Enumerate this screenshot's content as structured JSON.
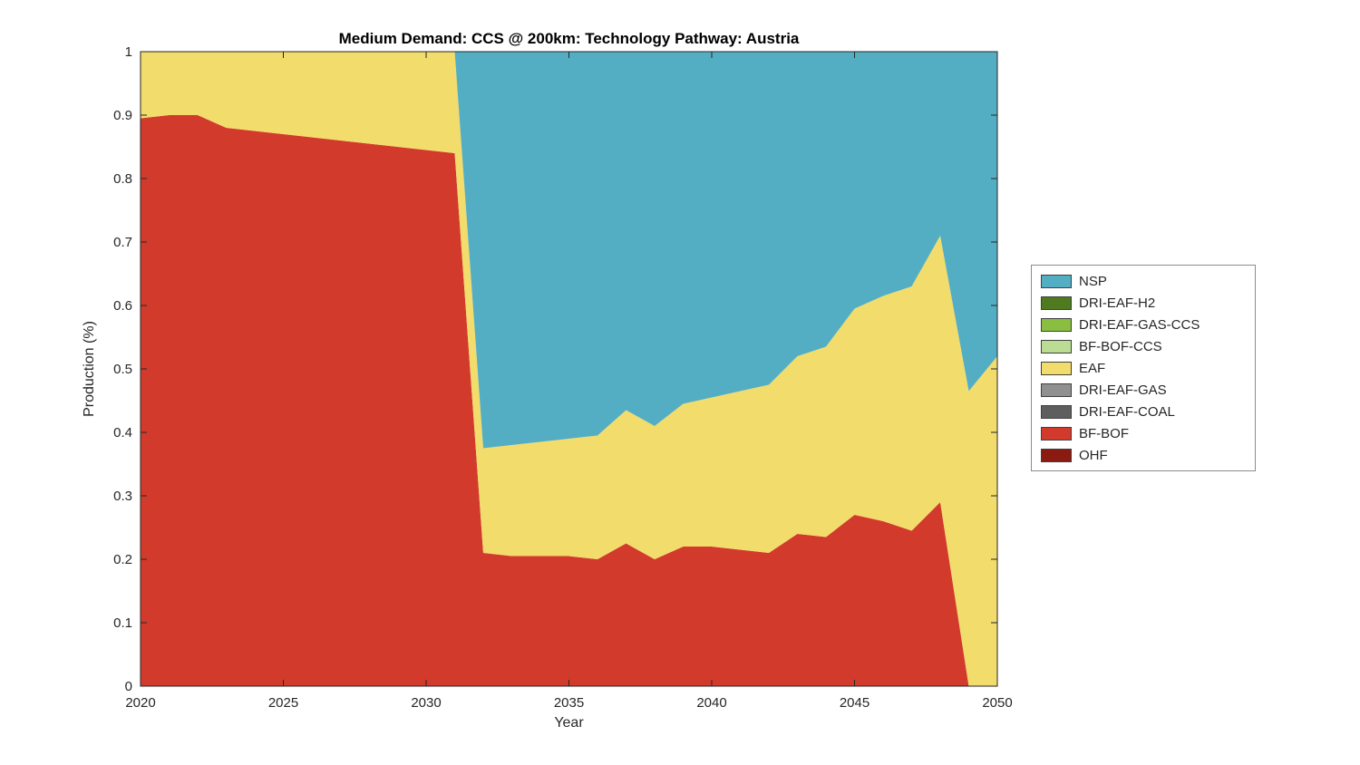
{
  "chart_data": {
    "type": "area",
    "stacked": true,
    "title": "Medium Demand: CCS @ 200km: Technology Pathway: Austria",
    "xlabel": "Year",
    "ylabel": "Production (%)",
    "xlim": [
      2020,
      2050
    ],
    "ylim": [
      0,
      1
    ],
    "grid": false,
    "legend_position": "right-outside",
    "x": [
      2020,
      2021,
      2022,
      2023,
      2024,
      2025,
      2026,
      2027,
      2028,
      2029,
      2030,
      2031,
      2032,
      2033,
      2034,
      2035,
      2036,
      2037,
      2038,
      2039,
      2040,
      2041,
      2042,
      2043,
      2044,
      2045,
      2046,
      2047,
      2048,
      2049,
      2050
    ],
    "xticks": [
      2020,
      2025,
      2030,
      2035,
      2040,
      2045,
      2050
    ],
    "xtick_labels": [
      "2020",
      "2025",
      "2030",
      "2035",
      "2040",
      "2045",
      "2050"
    ],
    "yticks": [
      0,
      0.1,
      0.2,
      0.3,
      0.4,
      0.5,
      0.6,
      0.7,
      0.8,
      0.9,
      1
    ],
    "ytick_labels": [
      "0",
      "0.1",
      "0.2",
      "0.3",
      "0.4",
      "0.5",
      "0.6",
      "0.7",
      "0.8",
      "0.9",
      "1"
    ],
    "series": [
      {
        "name": "OHF",
        "color": "#8b1a10",
        "values": [
          0,
          0,
          0,
          0,
          0,
          0,
          0,
          0,
          0,
          0,
          0,
          0,
          0,
          0,
          0,
          0,
          0,
          0,
          0,
          0,
          0,
          0,
          0,
          0,
          0,
          0,
          0,
          0,
          0,
          0,
          0
        ]
      },
      {
        "name": "BF-BOF",
        "color": "#d23b2b",
        "values": [
          0.895,
          0.9,
          0.9,
          0.88,
          0.875,
          0.87,
          0.865,
          0.86,
          0.855,
          0.85,
          0.845,
          0.84,
          0.21,
          0.205,
          0.205,
          0.205,
          0.2,
          0.225,
          0.2,
          0.22,
          0.22,
          0.215,
          0.21,
          0.24,
          0.235,
          0.27,
          0.26,
          0.245,
          0.29,
          0,
          0
        ]
      },
      {
        "name": "DRI-EAF-COAL",
        "color": "#5e5e5e",
        "values": [
          0,
          0,
          0,
          0,
          0,
          0,
          0,
          0,
          0,
          0,
          0,
          0,
          0,
          0,
          0,
          0,
          0,
          0,
          0,
          0,
          0,
          0,
          0,
          0,
          0,
          0,
          0,
          0,
          0,
          0,
          0
        ]
      },
      {
        "name": "DRI-EAF-GAS",
        "color": "#909090",
        "values": [
          0,
          0,
          0,
          0,
          0,
          0,
          0,
          0,
          0,
          0,
          0,
          0,
          0,
          0,
          0,
          0,
          0,
          0,
          0,
          0,
          0,
          0,
          0,
          0,
          0,
          0,
          0,
          0,
          0,
          0,
          0
        ]
      },
      {
        "name": "EAF",
        "color": "#f2dc6b",
        "values": [
          0.105,
          0.1,
          0.1,
          0.12,
          0.125,
          0.13,
          0.135,
          0.14,
          0.145,
          0.15,
          0.155,
          0.16,
          0.165,
          0.175,
          0.18,
          0.185,
          0.195,
          0.21,
          0.21,
          0.225,
          0.235,
          0.25,
          0.265,
          0.28,
          0.3,
          0.325,
          0.355,
          0.385,
          0.42,
          0.465,
          0.52
        ]
      },
      {
        "name": "BF-BOF-CCS",
        "color": "#bbdd93",
        "values": [
          0,
          0,
          0,
          0,
          0,
          0,
          0,
          0,
          0,
          0,
          0,
          0,
          0,
          0,
          0,
          0,
          0,
          0,
          0,
          0,
          0,
          0,
          0,
          0,
          0,
          0,
          0,
          0,
          0,
          0,
          0
        ]
      },
      {
        "name": "DRI-EAF-GAS-CCS",
        "color": "#89be41",
        "values": [
          0,
          0,
          0,
          0,
          0,
          0,
          0,
          0,
          0,
          0,
          0,
          0,
          0,
          0,
          0,
          0,
          0,
          0,
          0,
          0,
          0,
          0,
          0,
          0,
          0,
          0,
          0,
          0,
          0,
          0,
          0
        ]
      },
      {
        "name": "DRI-EAF-H2",
        "color": "#4f7a20",
        "values": [
          0,
          0,
          0,
          0,
          0,
          0,
          0,
          0,
          0,
          0,
          0,
          0,
          0,
          0,
          0,
          0,
          0,
          0,
          0,
          0,
          0,
          0,
          0,
          0,
          0,
          0,
          0,
          0,
          0,
          0,
          0
        ]
      },
      {
        "name": "NSP",
        "color": "#54aec3",
        "values": [
          0,
          0,
          0,
          0,
          0,
          0,
          0,
          0,
          0,
          0,
          0,
          0,
          0.625,
          0.62,
          0.615,
          0.61,
          0.605,
          0.565,
          0.59,
          0.555,
          0.545,
          0.535,
          0.525,
          0.48,
          0.465,
          0.405,
          0.385,
          0.37,
          0.29,
          0.535,
          0.48
        ]
      }
    ],
    "legend_order": [
      "NSP",
      "DRI-EAF-H2",
      "DRI-EAF-GAS-CCS",
      "BF-BOF-CCS",
      "EAF",
      "DRI-EAF-GAS",
      "DRI-EAF-COAL",
      "BF-BOF",
      "OHF"
    ],
    "axis_color": "#262626",
    "text_color": "#262626"
  }
}
